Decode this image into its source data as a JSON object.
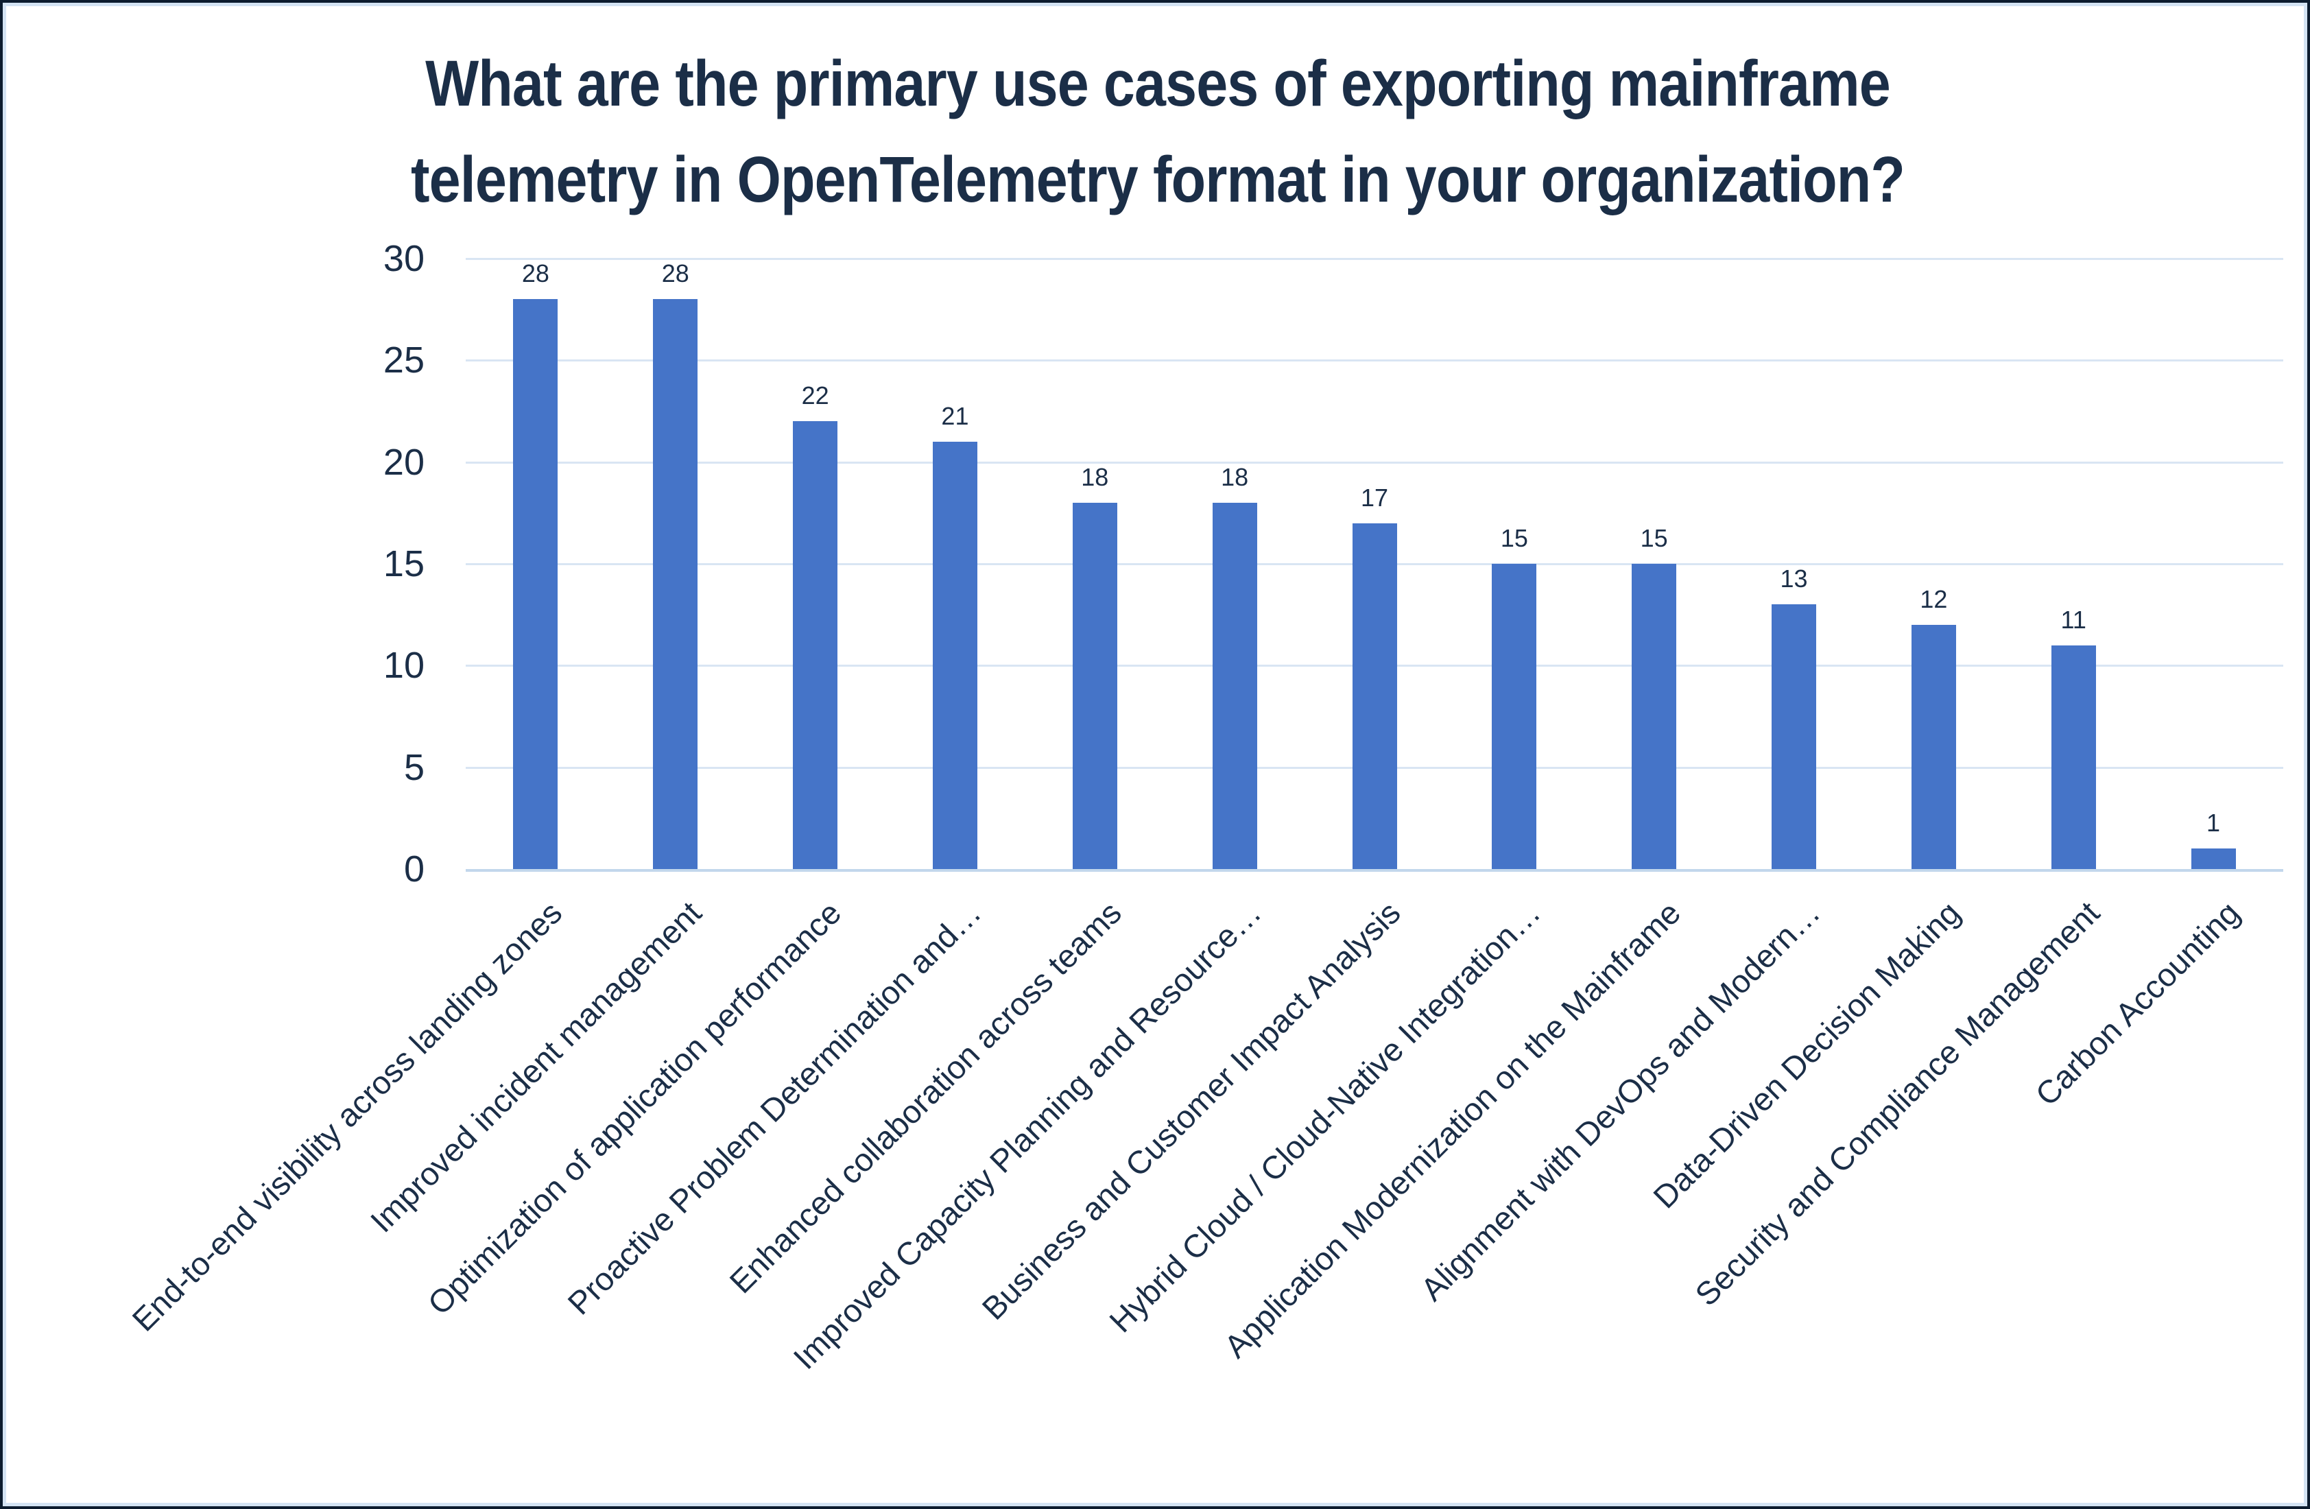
{
  "frame": {
    "outer_border_color": "#0c1c2e",
    "inner_border_color": "#d3e3f3",
    "background": "#ffffff"
  },
  "chart_data": {
    "type": "bar",
    "title": "What are the primary use cases of exporting mainframe telemetry in OpenTelemetry format in your organization?",
    "title_lines": [
      "What are the primary use cases of exporting mainframe",
      "telemetry in OpenTelemetry format in your organization?"
    ],
    "categories": [
      "End-to-end visibility across landing zones",
      "Improved incident management",
      "Optimization of application performance",
      "Proactive Problem Determination and…",
      "Enhanced collaboration across teams",
      "Improved Capacity Planning and Resource…",
      "Business and Customer Impact Analysis",
      "Hybrid Cloud / Cloud-Native Integration…",
      "Application Modernization on the Mainframe",
      "Alignment with DevOps and Modern…",
      "Data-Driven Decision Making",
      "Security and Compliance Management",
      "Carbon Accounting"
    ],
    "values": [
      28,
      28,
      22,
      21,
      18,
      18,
      17,
      15,
      15,
      13,
      12,
      11,
      1
    ],
    "data_labels": [
      28,
      28,
      22,
      21,
      18,
      18,
      17,
      15,
      15,
      13,
      12,
      11,
      1
    ],
    "xlabel": "",
    "ylabel": "",
    "ylim": [
      0,
      30
    ],
    "yticks": [
      0,
      5,
      10,
      15,
      20,
      25,
      30
    ],
    "grid": true,
    "legend_position": "none",
    "colors": {
      "bar": "#4574C8",
      "gridline": "#d9e5f3",
      "axis_line": "#c2d7ec",
      "text": "#1b2e47"
    }
  }
}
